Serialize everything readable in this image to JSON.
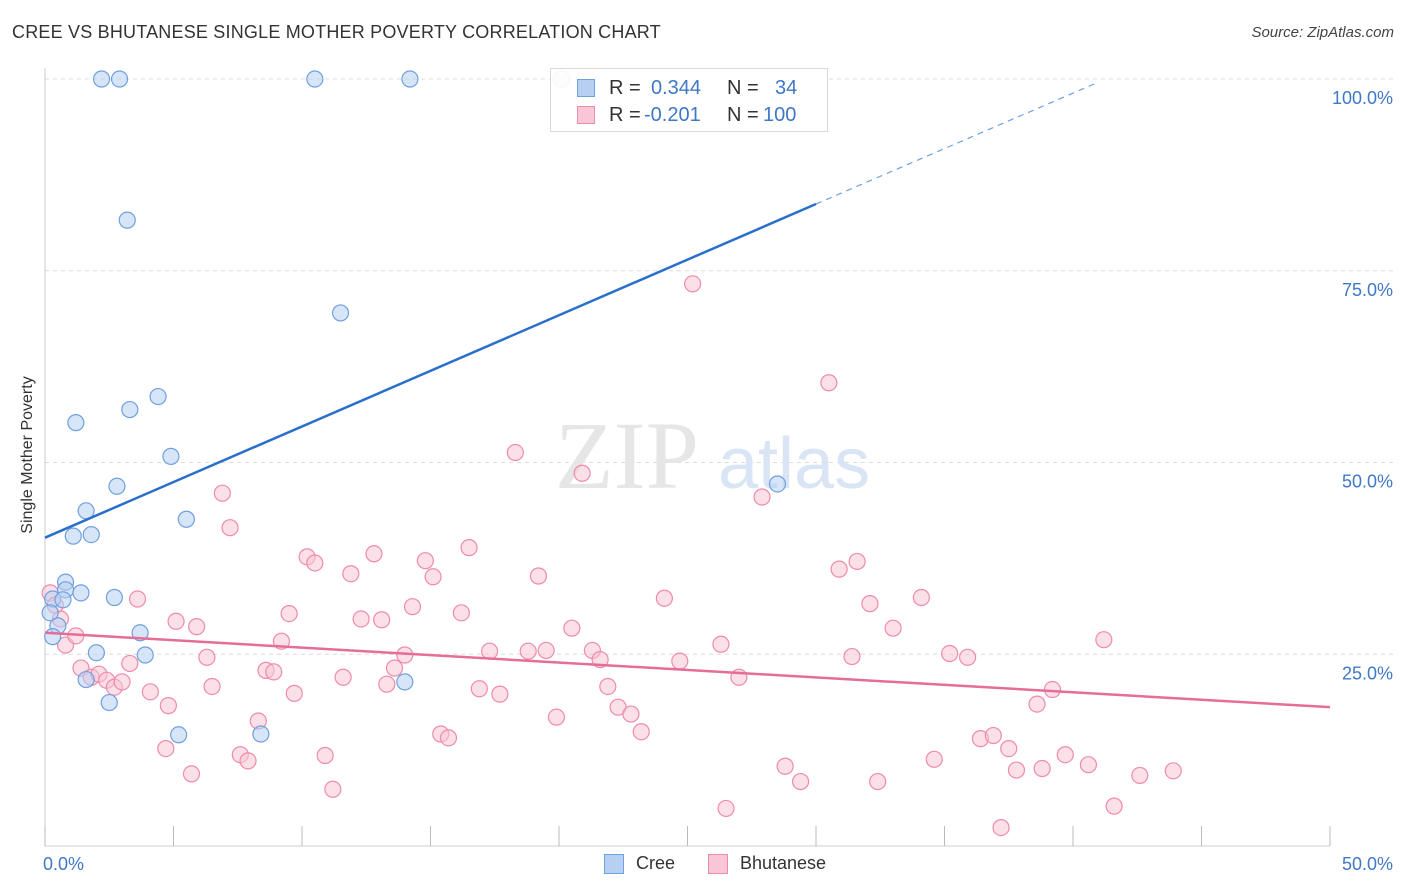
{
  "header": {
    "title": "CREE VS BHUTANESE SINGLE MOTHER POVERTY CORRELATION CHART",
    "source": "Source: ZipAtlas.com"
  },
  "watermark": {
    "zip": "ZIP",
    "atlas": "atlas"
  },
  "legend": {
    "r_label": "R =",
    "n_label": "N =",
    "rows": [
      {
        "series": "Cree",
        "r": "0.344",
        "n": "34",
        "color": "#6fa0e0"
      },
      {
        "series": "Bhutanese",
        "r": "-0.201",
        "n": "100",
        "color": "#f08aab"
      }
    ]
  },
  "chart_data": {
    "type": "scatter",
    "title": "CREE VS BHUTANESE SINGLE MOTHER POVERTY CORRELATION CHART",
    "xlabel": "",
    "ylabel": "Single Mother Poverty",
    "xlim": [
      0,
      50
    ],
    "ylim": [
      0,
      100
    ],
    "x_tick_labels": [
      "0.0%",
      "50.0%"
    ],
    "y_tick_values": [
      25,
      50,
      75,
      100
    ],
    "y_tick_labels": [
      "25.0%",
      "50.0%",
      "75.0%",
      "100.0%"
    ],
    "grid": "horizontal dashed",
    "legend_position": "top-center",
    "series": [
      {
        "name": "Cree",
        "color": "#6fa0e0",
        "fill": "#b7d0f2",
        "trend": {
          "x0": 0,
          "y0": 40.2,
          "x1": 30,
          "y1": 83.7,
          "dashed_to_x": 41,
          "dashed_to_y": 99.6
        },
        "points": [
          [
            2.2,
            100
          ],
          [
            2.9,
            100
          ],
          [
            10.5,
            100
          ],
          [
            14.2,
            100
          ],
          [
            20.1,
            100
          ],
          [
            3.2,
            81.6
          ],
          [
            11.5,
            69.5
          ],
          [
            4.4,
            58.6
          ],
          [
            3.3,
            56.9
          ],
          [
            1.2,
            55.2
          ],
          [
            4.9,
            50.8
          ],
          [
            2.8,
            46.9
          ],
          [
            5.5,
            42.6
          ],
          [
            1.6,
            43.7
          ],
          [
            1.1,
            40.4
          ],
          [
            1.8,
            40.6
          ],
          [
            0.8,
            34.4
          ],
          [
            0.8,
            33.4
          ],
          [
            1.4,
            33.0
          ],
          [
            0.3,
            32.2
          ],
          [
            2.7,
            32.4
          ],
          [
            0.7,
            32.1
          ],
          [
            0.2,
            30.4
          ],
          [
            0.5,
            28.7
          ],
          [
            0.3,
            27.3
          ],
          [
            3.7,
            27.8
          ],
          [
            3.9,
            24.9
          ],
          [
            2.0,
            25.2
          ],
          [
            1.6,
            21.7
          ],
          [
            14.0,
            21.4
          ],
          [
            2.5,
            18.7
          ],
          [
            5.2,
            14.5
          ],
          [
            8.4,
            14.6
          ],
          [
            28.5,
            47.2
          ]
        ]
      },
      {
        "name": "Bhutanese",
        "color": "#f08aab",
        "fill": "#f8c6d6",
        "trend": {
          "x0": 0,
          "y0": 27.8,
          "x1": 50,
          "y1": 18.1
        },
        "points": [
          [
            0.2,
            33.0
          ],
          [
            0.4,
            31.4
          ],
          [
            0.6,
            29.6
          ],
          [
            0.8,
            26.2
          ],
          [
            1.2,
            27.4
          ],
          [
            1.4,
            23.2
          ],
          [
            1.8,
            22.0
          ],
          [
            2.1,
            22.4
          ],
          [
            2.4,
            21.6
          ],
          [
            2.7,
            20.7
          ],
          [
            3.0,
            21.4
          ],
          [
            3.3,
            23.8
          ],
          [
            3.6,
            32.2
          ],
          [
            4.1,
            20.1
          ],
          [
            4.8,
            18.3
          ],
          [
            5.1,
            29.3
          ],
          [
            4.7,
            12.7
          ],
          [
            5.7,
            9.4
          ],
          [
            5.9,
            28.6
          ],
          [
            6.3,
            24.6
          ],
          [
            6.5,
            20.8
          ],
          [
            6.9,
            46.0
          ],
          [
            7.2,
            41.5
          ],
          [
            7.6,
            11.9
          ],
          [
            7.9,
            11.1
          ],
          [
            8.3,
            16.3
          ],
          [
            8.6,
            22.9
          ],
          [
            8.9,
            22.7
          ],
          [
            9.2,
            26.7
          ],
          [
            9.5,
            30.3
          ],
          [
            9.7,
            19.9
          ],
          [
            10.2,
            37.7
          ],
          [
            10.5,
            36.9
          ],
          [
            10.9,
            11.8
          ],
          [
            11.2,
            7.4
          ],
          [
            11.6,
            22.0
          ],
          [
            11.9,
            35.5
          ],
          [
            12.3,
            29.6
          ],
          [
            12.8,
            38.1
          ],
          [
            13.1,
            29.5
          ],
          [
            13.3,
            21.1
          ],
          [
            13.6,
            23.2
          ],
          [
            14.0,
            24.9
          ],
          [
            14.3,
            31.2
          ],
          [
            14.8,
            37.2
          ],
          [
            15.1,
            35.1
          ],
          [
            15.4,
            14.6
          ],
          [
            15.7,
            14.1
          ],
          [
            16.2,
            30.4
          ],
          [
            16.5,
            38.9
          ],
          [
            16.9,
            20.5
          ],
          [
            17.3,
            25.4
          ],
          [
            17.7,
            19.8
          ],
          [
            18.3,
            51.3
          ],
          [
            18.8,
            25.4
          ],
          [
            19.2,
            35.2
          ],
          [
            19.5,
            25.5
          ],
          [
            19.9,
            16.8
          ],
          [
            20.5,
            28.4
          ],
          [
            20.9,
            48.6
          ],
          [
            21.3,
            25.5
          ],
          [
            21.6,
            24.3
          ],
          [
            21.9,
            20.8
          ],
          [
            22.3,
            18.1
          ],
          [
            22.8,
            17.2
          ],
          [
            23.2,
            14.9
          ],
          [
            24.1,
            32.3
          ],
          [
            24.7,
            24.1
          ],
          [
            25.2,
            73.3
          ],
          [
            26.3,
            26.3
          ],
          [
            26.5,
            4.9
          ],
          [
            27.0,
            22.0
          ],
          [
            27.9,
            45.5
          ],
          [
            28.8,
            10.4
          ],
          [
            29.4,
            8.4
          ],
          [
            30.5,
            60.4
          ],
          [
            30.9,
            36.1
          ],
          [
            31.4,
            24.7
          ],
          [
            31.6,
            37.1
          ],
          [
            32.1,
            31.6
          ],
          [
            32.4,
            8.4
          ],
          [
            33.0,
            28.4
          ],
          [
            34.1,
            32.4
          ],
          [
            34.6,
            11.3
          ],
          [
            35.2,
            25.1
          ],
          [
            35.9,
            24.6
          ],
          [
            36.4,
            14.0
          ],
          [
            36.9,
            14.4
          ],
          [
            37.2,
            2.4
          ],
          [
            37.5,
            12.7
          ],
          [
            37.8,
            9.9
          ],
          [
            38.6,
            18.5
          ],
          [
            38.8,
            10.1
          ],
          [
            39.2,
            20.4
          ],
          [
            39.7,
            11.9
          ],
          [
            40.6,
            10.6
          ],
          [
            41.6,
            5.2
          ],
          [
            41.2,
            26.9
          ],
          [
            42.6,
            9.2
          ],
          [
            43.9,
            9.8
          ]
        ]
      }
    ]
  }
}
